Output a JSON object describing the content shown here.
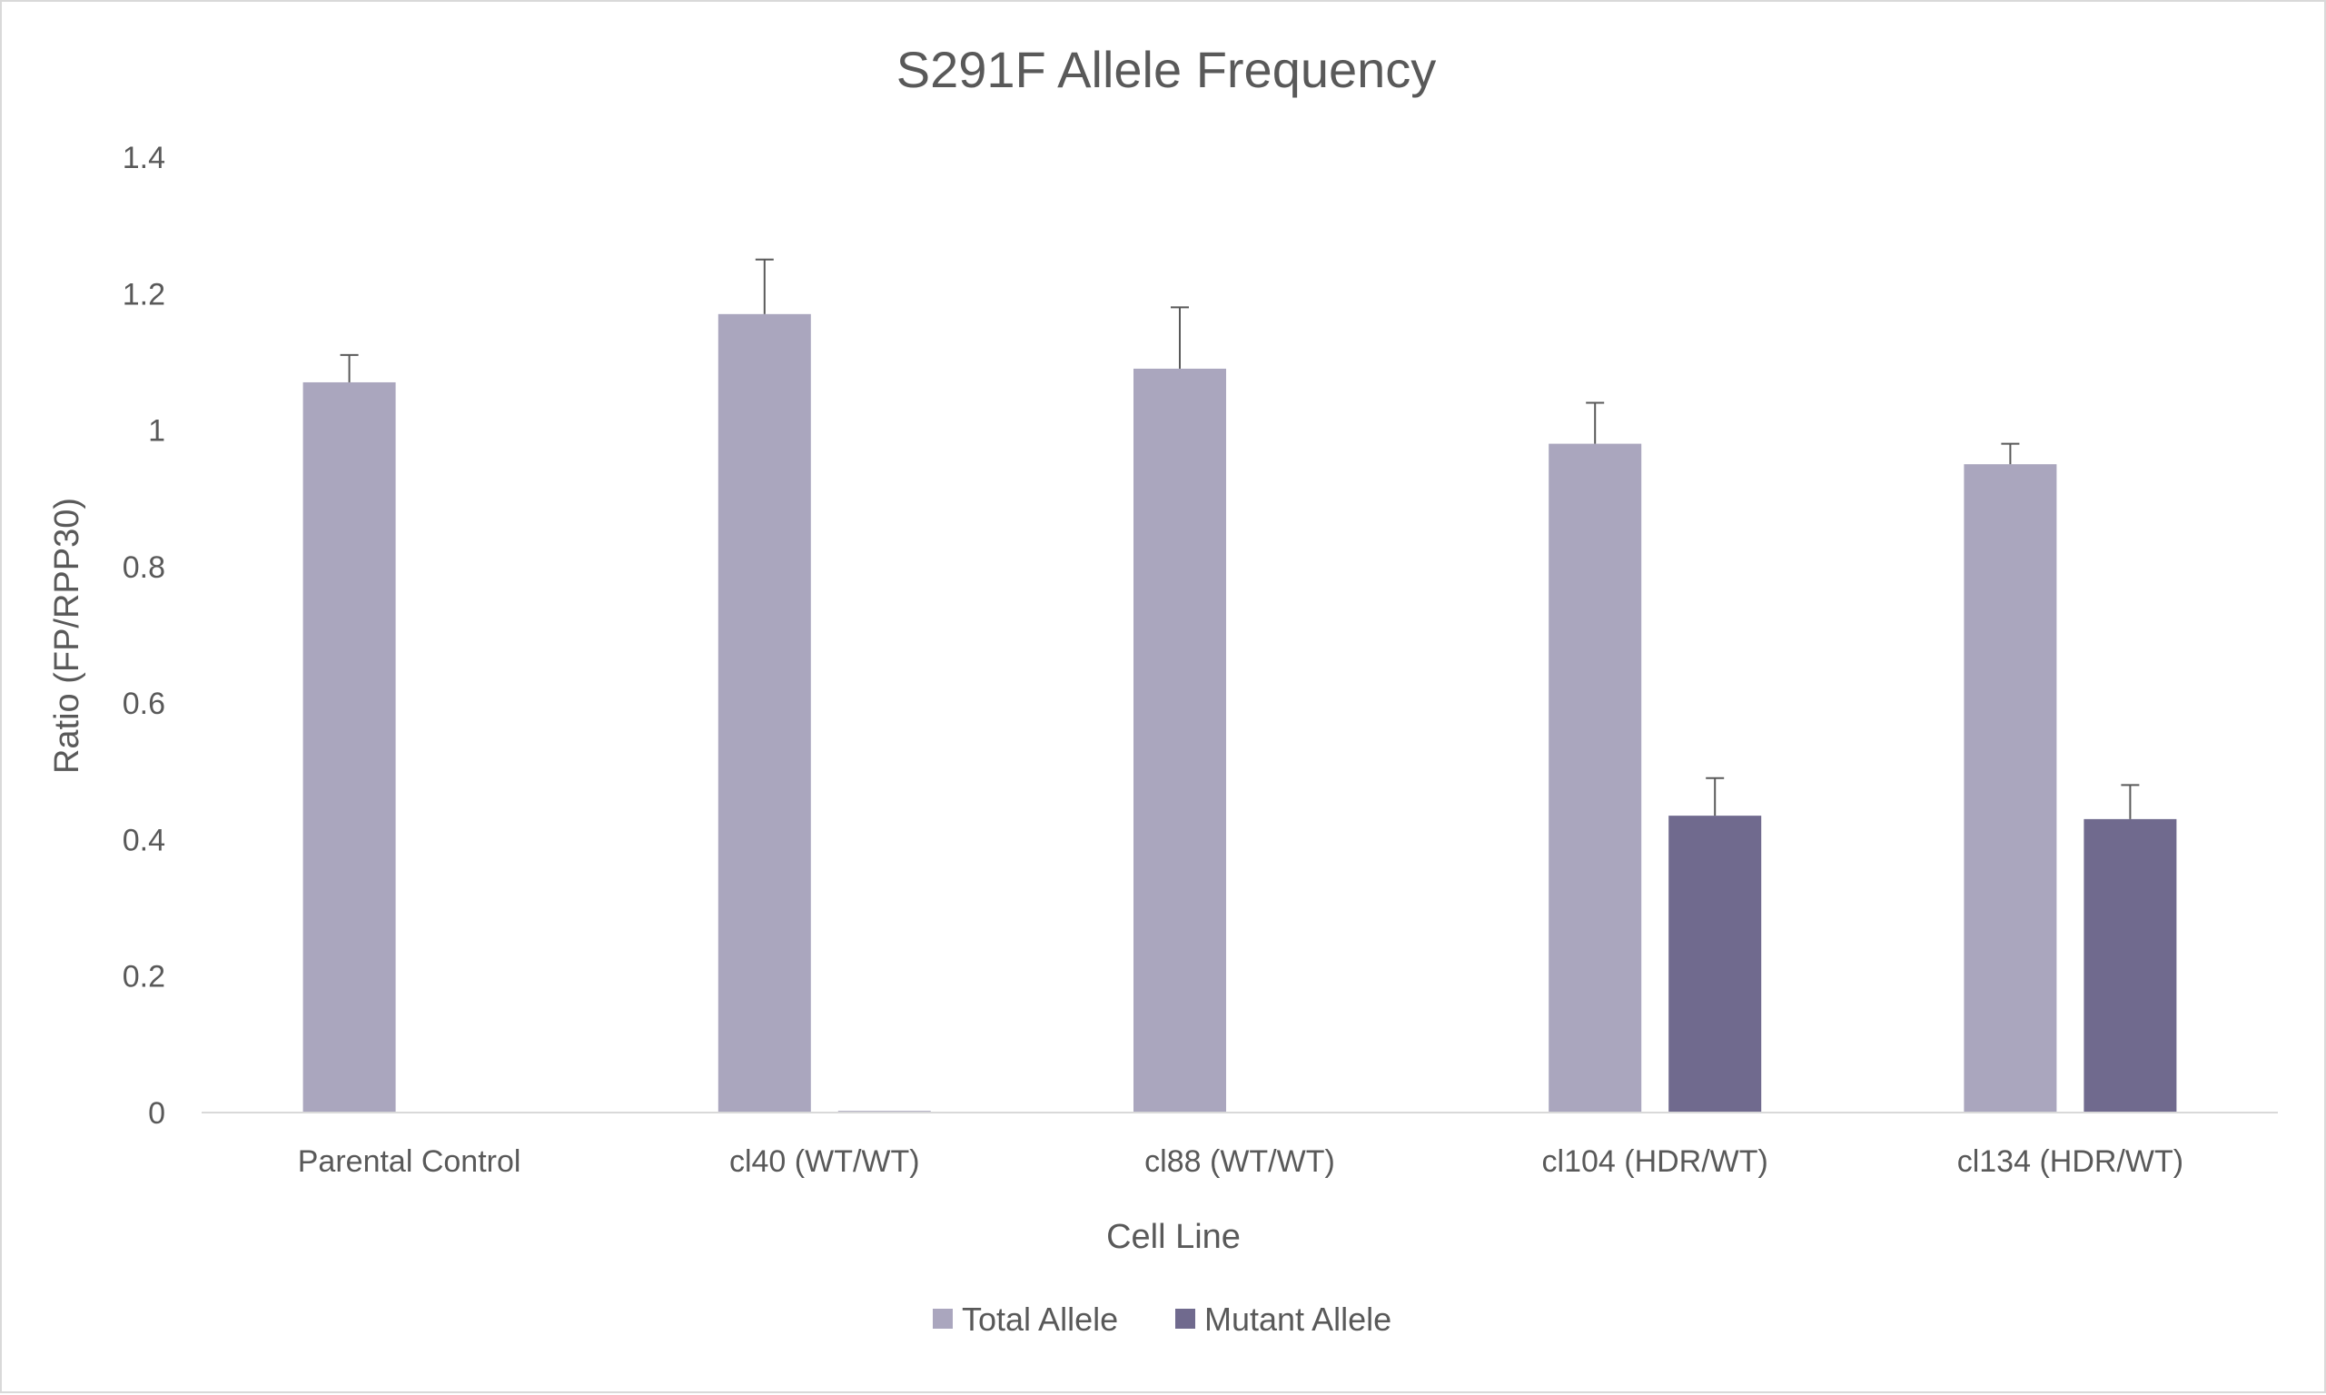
{
  "chart_data": {
    "type": "bar",
    "title": "S291F Allele Frequency",
    "xlabel": "Cell Line",
    "ylabel": "Ratio (FP/RPP30)",
    "categories": [
      "Parental Control",
      "cl40 (WT/WT)",
      "cl88 (WT/WT)",
      "cl104 (HDR/WT)",
      "cl134 (HDR/WT)"
    ],
    "series": [
      {
        "name": "Total Allele",
        "color": "#aaa6be",
        "values": [
          1.07,
          1.17,
          1.09,
          0.98,
          0.95
        ],
        "error_plus": [
          0.04,
          0.08,
          0.09,
          0.06,
          0.03
        ]
      },
      {
        "name": "Mutant Allele",
        "color": "#706a8e",
        "values": [
          0,
          0.002,
          0,
          0.435,
          0.43
        ],
        "error_plus": [
          0,
          0,
          0,
          0.055,
          0.05
        ]
      }
    ],
    "ylim": [
      0,
      1.4
    ],
    "yticks": [
      0,
      0.2,
      0.4,
      0.6,
      0.8,
      1,
      1.2,
      1.4
    ],
    "ytick_labels": [
      "0",
      "0.2",
      "0.4",
      "0.6",
      "0.8",
      "1",
      "1.2",
      "1.4"
    ],
    "grid": false,
    "legend_position": "bottom",
    "axis_color": "#d9d9d9",
    "text_color": "#595959",
    "error_bar_color": "#595959"
  }
}
